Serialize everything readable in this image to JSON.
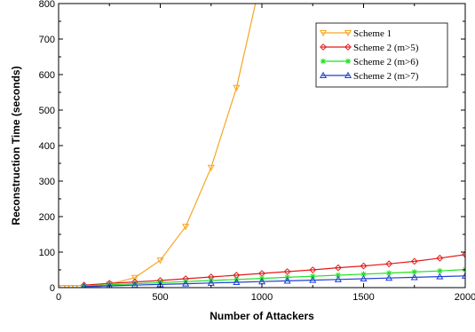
{
  "chart_data": {
    "type": "line",
    "title": "",
    "xlabel": "Number of Attackers",
    "ylabel": "Reconstruction Time (seconds)",
    "xlim": [
      0,
      2000
    ],
    "ylim": [
      0,
      800
    ],
    "xticks": [
      0,
      500,
      1000,
      1500,
      2000
    ],
    "yticks": [
      0,
      100,
      200,
      300,
      400,
      500,
      600,
      700,
      800
    ],
    "grid": false,
    "legend_position": "top-right",
    "series": [
      {
        "name": "Scheme 1",
        "color": "#f5a623",
        "marker": "triangle-down",
        "x": [
          20,
          40,
          60,
          80,
          100,
          125,
          150,
          175,
          200,
          250,
          375,
          500,
          625,
          750,
          875,
          1000
        ],
        "y": [
          0,
          0,
          0,
          0,
          0,
          0,
          1,
          2,
          3,
          10,
          28,
          77,
          172,
          338,
          563,
          880
        ]
      },
      {
        "name": "Scheme 2 (m>5)",
        "color": "#e31a1c",
        "marker": "diamond",
        "x": [
          125,
          250,
          375,
          500,
          625,
          750,
          875,
          1000,
          1125,
          1250,
          1375,
          1500,
          1625,
          1750,
          1875,
          2000
        ],
        "y": [
          7,
          12,
          16,
          20,
          25,
          30,
          35,
          40,
          45,
          50,
          56,
          61,
          67,
          74,
          83,
          93
        ]
      },
      {
        "name": "Scheme 2 (m>6)",
        "color": "#22e022",
        "marker": "asterisk",
        "x": [
          125,
          250,
          375,
          500,
          625,
          750,
          875,
          1000,
          1125,
          1250,
          1375,
          1500,
          1625,
          1750,
          1875,
          2000
        ],
        "y": [
          5,
          8,
          11,
          14,
          17,
          20,
          23,
          26,
          29,
          32,
          35,
          38,
          41,
          44,
          47,
          51
        ]
      },
      {
        "name": "Scheme 2 (m>7)",
        "color": "#1f3fd6",
        "marker": "triangle-up",
        "x": [
          125,
          250,
          375,
          500,
          625,
          750,
          875,
          1000,
          1125,
          1250,
          1375,
          1500,
          1625,
          1750,
          1875,
          2000
        ],
        "y": [
          3,
          5,
          7,
          9,
          11,
          13,
          15,
          17,
          19,
          21,
          23,
          25,
          27,
          29,
          31,
          33
        ]
      }
    ]
  }
}
